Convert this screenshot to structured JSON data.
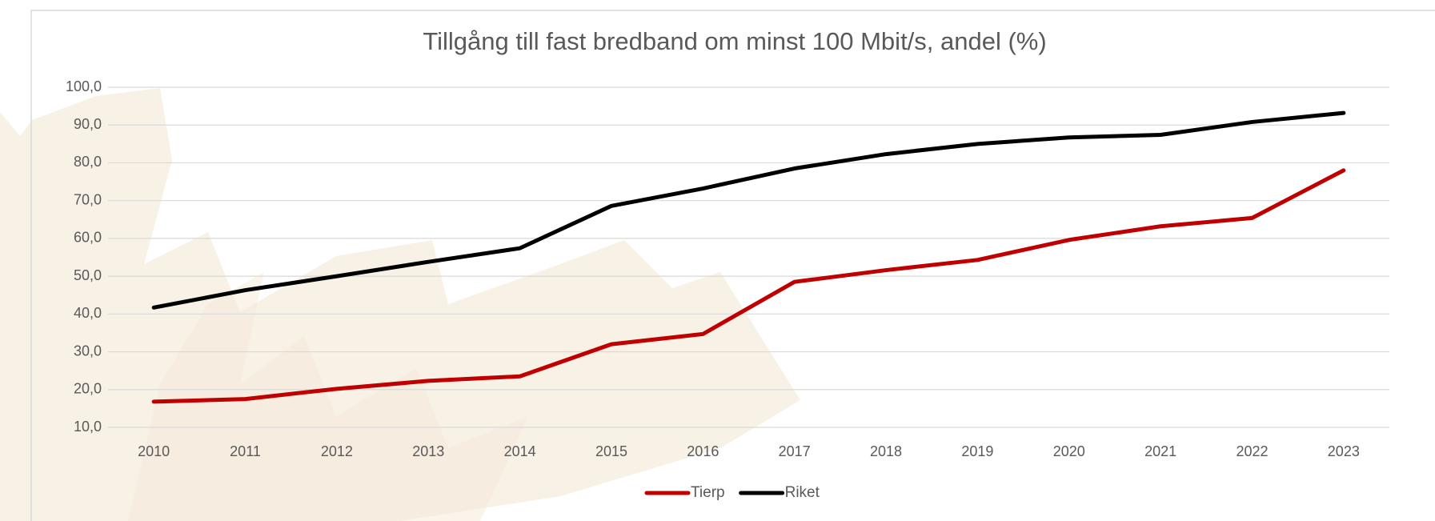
{
  "chart_data": {
    "type": "line",
    "title": "Tillgång till fast bredband om minst 100 Mbit/s, andel (%)",
    "categories": [
      "2010",
      "2011",
      "2012",
      "2013",
      "2014",
      "2015",
      "2016",
      "2017",
      "2018",
      "2019",
      "2020",
      "2021",
      "2022",
      "2023"
    ],
    "series": [
      {
        "name": "Tierp",
        "color": "#c00000",
        "values": [
          16.8,
          17.5,
          20.2,
          22.3,
          23.5,
          32.0,
          34.7,
          48.5,
          51.6,
          54.3,
          59.6,
          63.2,
          65.4,
          78.0
        ]
      },
      {
        "name": "Riket",
        "color": "#000000",
        "values": [
          41.7,
          46.3,
          50.0,
          53.8,
          57.4,
          68.6,
          73.2,
          78.5,
          82.3,
          85.0,
          86.7,
          87.4,
          90.8,
          93.2
        ]
      }
    ],
    "ylim": [
      10,
      100
    ],
    "yticks": [
      {
        "value": 10,
        "label": "10,0"
      },
      {
        "value": 20,
        "label": "20,0"
      },
      {
        "value": 30,
        "label": "30,0"
      },
      {
        "value": 40,
        "label": "40,0"
      },
      {
        "value": 50,
        "label": "50,0"
      },
      {
        "value": 60,
        "label": "60,0"
      },
      {
        "value": 70,
        "label": "70,0"
      },
      {
        "value": 80,
        "label": "80,0"
      },
      {
        "value": 90,
        "label": "90,0"
      },
      {
        "value": 100,
        "label": "100,0"
      }
    ],
    "grid": true,
    "legend": "bottom"
  }
}
